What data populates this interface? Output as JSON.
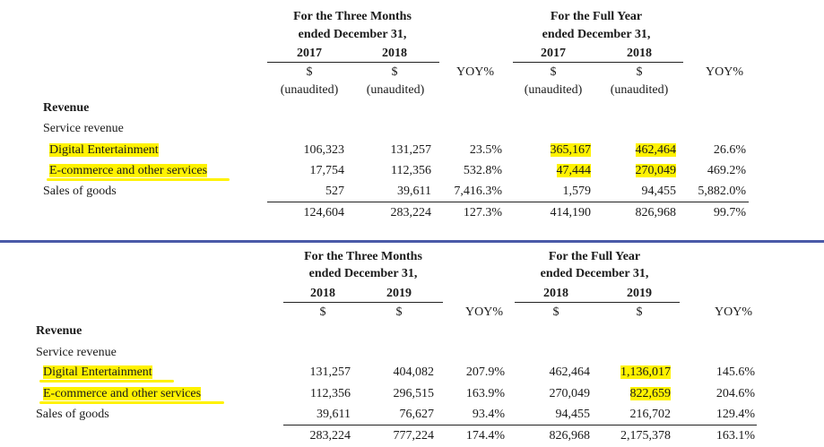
{
  "table1": {
    "group1": {
      "line1": "For the Three Months",
      "line2": "ended December 31,"
    },
    "group2": {
      "line1": "For the Full Year",
      "line2": "ended December 31,"
    },
    "years": [
      "2017",
      "2018",
      "2017",
      "2018"
    ],
    "currency": [
      "$",
      "$",
      "$",
      "$"
    ],
    "unaudited": [
      "(unaudited)",
      "(unaudited)",
      "(unaudited)",
      "(unaudited)"
    ],
    "yoy": [
      "YOY%",
      "YOY%"
    ],
    "section": "Revenue",
    "subsection": "Service revenue",
    "rows": [
      {
        "label": "Digital Entertainment",
        "v": [
          "106,323",
          "131,257",
          "23.5%",
          "365,167",
          "462,464",
          "26.6%"
        ]
      },
      {
        "label": "E-commerce and other services",
        "v": [
          "17,754",
          "112,356",
          "532.8%",
          "47,444",
          "270,049",
          "469.2%"
        ]
      },
      {
        "label": "Sales of goods",
        "v": [
          "527",
          "39,611",
          "7,416.3%",
          "1,579",
          "94,455",
          "5,882.0%"
        ]
      }
    ],
    "total": [
      "124,604",
      "283,224",
      "127.3%",
      "414,190",
      "826,968",
      "99.7%"
    ]
  },
  "table2": {
    "group1": {
      "line1": "For the Three Months",
      "line2": "ended December 31,"
    },
    "group2": {
      "line1": "For the Full Year",
      "line2": "ended December 31,"
    },
    "years": [
      "2018",
      "2019",
      "2018",
      "2019"
    ],
    "currency": [
      "$",
      "$",
      "$",
      "$"
    ],
    "yoy": [
      "YOY%",
      "YOY%"
    ],
    "section": "Revenue",
    "subsection": "Service revenue",
    "rows": [
      {
        "label": "Digital Entertainment",
        "v": [
          "131,257",
          "404,082",
          "207.9%",
          "462,464",
          "1,136,017",
          "145.6%"
        ]
      },
      {
        "label": "E-commerce and other services",
        "v": [
          "112,356",
          "296,515",
          "163.9%",
          "270,049",
          "822,659",
          "204.6%"
        ]
      },
      {
        "label": "Sales of goods",
        "v": [
          "39,611",
          "76,627",
          "93.4%",
          "94,455",
          "216,702",
          "129.4%"
        ]
      }
    ],
    "total": [
      "283,224",
      "777,224",
      "174.4%",
      "826,968",
      "2,175,378",
      "163.1%"
    ]
  },
  "highlight_color": "#fff200",
  "divider_color": "#4a5aa8"
}
